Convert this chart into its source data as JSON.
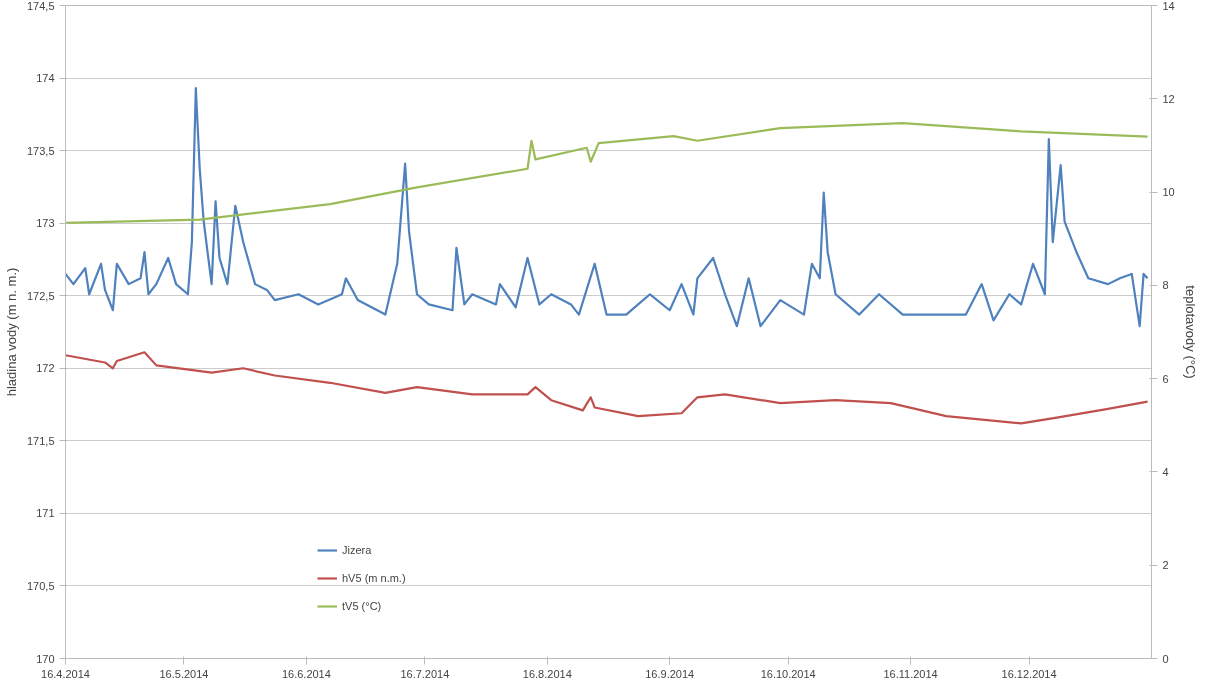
{
  "chart_data": {
    "type": "line",
    "xlabel": null,
    "ylabel": "hladina vody (m n. m.)",
    "y2label": "teplotavody (°C)",
    "xlim": [
      "2014-04-16",
      "2015-01-16"
    ],
    "xticks": [
      {
        "value": "2014-04-16",
        "label": "16.4.2014"
      },
      {
        "value": "2014-05-16",
        "label": "16.5.2014"
      },
      {
        "value": "2014-06-16",
        "label": "16.6.2014"
      },
      {
        "value": "2014-07-16",
        "label": "16.7.2014"
      },
      {
        "value": "2014-08-16",
        "label": "16.8.2014"
      },
      {
        "value": "2014-09-16",
        "label": "16.9.2014"
      },
      {
        "value": "2014-10-16",
        "label": "16.10.2014"
      },
      {
        "value": "2014-11-16",
        "label": "16.11.2014"
      },
      {
        "value": "2014-12-16",
        "label": "16.12.2014"
      }
    ],
    "ylim": [
      170,
      174.5
    ],
    "yticks": [
      170,
      {
        "value": 170.5,
        "label": "170,5"
      },
      171,
      {
        "value": 171.5,
        "label": "171,5"
      },
      172,
      {
        "value": 172.5,
        "label": "172,5"
      },
      173,
      {
        "value": 173.5,
        "label": "173,5"
      },
      174,
      {
        "value": 174.5,
        "label": "174,5"
      }
    ],
    "y2lim": [
      0,
      14
    ],
    "y2ticks": [
      0,
      2,
      4,
      6,
      8,
      10,
      12,
      14
    ],
    "grid": "y",
    "legend": "bottom left",
    "line_style": "solid",
    "series": [
      {
        "name": "Jizera",
        "color": "#4f81bd",
        "x": [
          "2014-04-16",
          "2014-04-18",
          "2014-04-21",
          "2014-04-22",
          "2014-04-25",
          "2014-04-26",
          "2014-04-28",
          "2014-04-29",
          "2014-05-02",
          "2014-05-05",
          "2014-05-06",
          "2014-05-07",
          "2014-05-09",
          "2014-05-12",
          "2014-05-14",
          "2014-05-17",
          "2014-05-18",
          "2014-05-19",
          "2014-05-20",
          "2014-05-21",
          "2014-05-23",
          "2014-05-24",
          "2014-05-25",
          "2014-05-27",
          "2014-05-29",
          "2014-05-31",
          "2014-06-03",
          "2014-06-06",
          "2014-06-08",
          "2014-06-14",
          "2014-06-19",
          "2014-06-25",
          "2014-06-26",
          "2014-06-29",
          "2014-07-06",
          "2014-07-09",
          "2014-07-11",
          "2014-07-12",
          "2014-07-14",
          "2014-07-17",
          "2014-07-23",
          "2014-07-24",
          "2014-07-26",
          "2014-07-28",
          "2014-08-03",
          "2014-08-04",
          "2014-08-08",
          "2014-08-11",
          "2014-08-14",
          "2014-08-17",
          "2014-08-22",
          "2014-08-24",
          "2014-08-28",
          "2014-08-31",
          "2014-09-05",
          "2014-09-08",
          "2014-09-11",
          "2014-09-16",
          "2014-09-19",
          "2014-09-22",
          "2014-09-23",
          "2014-09-27",
          "2014-09-30",
          "2014-10-03",
          "2014-10-06",
          "2014-10-09",
          "2014-10-14",
          "2014-10-20",
          "2014-10-22",
          "2014-10-24",
          "2014-10-25",
          "2014-10-26",
          "2014-10-28",
          "2014-11-03",
          "2014-11-08",
          "2014-11-14",
          "2014-11-23",
          "2014-11-30",
          "2014-12-04",
          "2014-12-07",
          "2014-12-11",
          "2014-12-14",
          "2014-12-17",
          "2014-12-20",
          "2014-12-21",
          "2014-12-22",
          "2014-12-24",
          "2014-12-25",
          "2014-12-28",
          "2014-12-31",
          "2015-01-05",
          "2015-01-08",
          "2015-01-11",
          "2015-01-13",
          "2015-01-14",
          "2015-01-15"
        ],
        "values": [
          172.65,
          172.58,
          172.69,
          172.51,
          172.72,
          172.54,
          172.4,
          172.72,
          172.58,
          172.62,
          172.8,
          172.51,
          172.58,
          172.76,
          172.58,
          172.51,
          172.87,
          173.93,
          173.37,
          173.01,
          172.58,
          173.15,
          172.76,
          172.58,
          173.12,
          172.87,
          172.58,
          172.54,
          172.47,
          172.51,
          172.44,
          172.51,
          172.62,
          172.47,
          172.37,
          172.72,
          173.41,
          172.94,
          172.51,
          172.44,
          172.4,
          172.83,
          172.44,
          172.51,
          172.44,
          172.58,
          172.42,
          172.76,
          172.44,
          172.51,
          172.44,
          172.37,
          172.72,
          172.37,
          172.37,
          172.44,
          172.51,
          172.4,
          172.58,
          172.37,
          172.62,
          172.76,
          172.51,
          172.29,
          172.62,
          172.29,
          172.47,
          172.37,
          172.72,
          172.62,
          173.21,
          172.8,
          172.51,
          172.37,
          172.51,
          172.37,
          172.37,
          172.37,
          172.58,
          172.33,
          172.51,
          172.44,
          172.72,
          172.51,
          173.58,
          172.87,
          173.4,
          173.01,
          172.8,
          172.62,
          172.58,
          172.62,
          172.65,
          172.29,
          172.65,
          172.62
        ]
      },
      {
        "name": "hV5 (m n.m.)",
        "color": "#c0504d",
        "x": [
          "2014-04-16",
          "2014-04-26",
          "2014-04-28",
          "2014-04-29",
          "2014-05-06",
          "2014-05-09",
          "2014-05-23",
          "2014-05-31",
          "2014-06-08",
          "2014-06-22",
          "2014-07-06",
          "2014-07-14",
          "2014-07-28",
          "2014-08-11",
          "2014-08-13",
          "2014-08-17",
          "2014-08-25",
          "2014-08-27",
          "2014-08-28",
          "2014-09-08",
          "2014-09-19",
          "2014-09-23",
          "2014-09-30",
          "2014-10-14",
          "2014-10-28",
          "2014-11-11",
          "2014-11-25",
          "2014-12-14",
          "2014-12-23",
          "2015-01-05",
          "2015-01-15"
        ],
        "values": [
          172.09,
          172.04,
          172.0,
          172.05,
          172.11,
          172.02,
          171.97,
          172.0,
          171.95,
          171.9,
          171.83,
          171.87,
          171.82,
          171.82,
          171.87,
          171.78,
          171.71,
          171.8,
          171.73,
          171.67,
          171.69,
          171.8,
          171.82,
          171.76,
          171.78,
          171.76,
          171.67,
          171.62,
          171.66,
          171.72,
          171.77
        ]
      },
      {
        "name": "tV5 (°C)",
        "color": "#9bbb59",
        "axis": "y2",
        "x": [
          "2014-04-16",
          "2014-05-20",
          "2014-06-22",
          "2014-07-14",
          "2014-08-11",
          "2014-08-12",
          "2014-08-13",
          "2014-08-26",
          "2014-08-27",
          "2014-08-29",
          "2014-09-17",
          "2014-09-23",
          "2014-10-14",
          "2014-11-14",
          "2014-12-14",
          "2015-01-15"
        ],
        "values": [
          9.34,
          9.41,
          9.74,
          10.1,
          10.5,
          11.1,
          10.7,
          10.95,
          10.65,
          11.05,
          11.2,
          11.1,
          11.37,
          11.48,
          11.3,
          11.19
        ]
      }
    ]
  }
}
